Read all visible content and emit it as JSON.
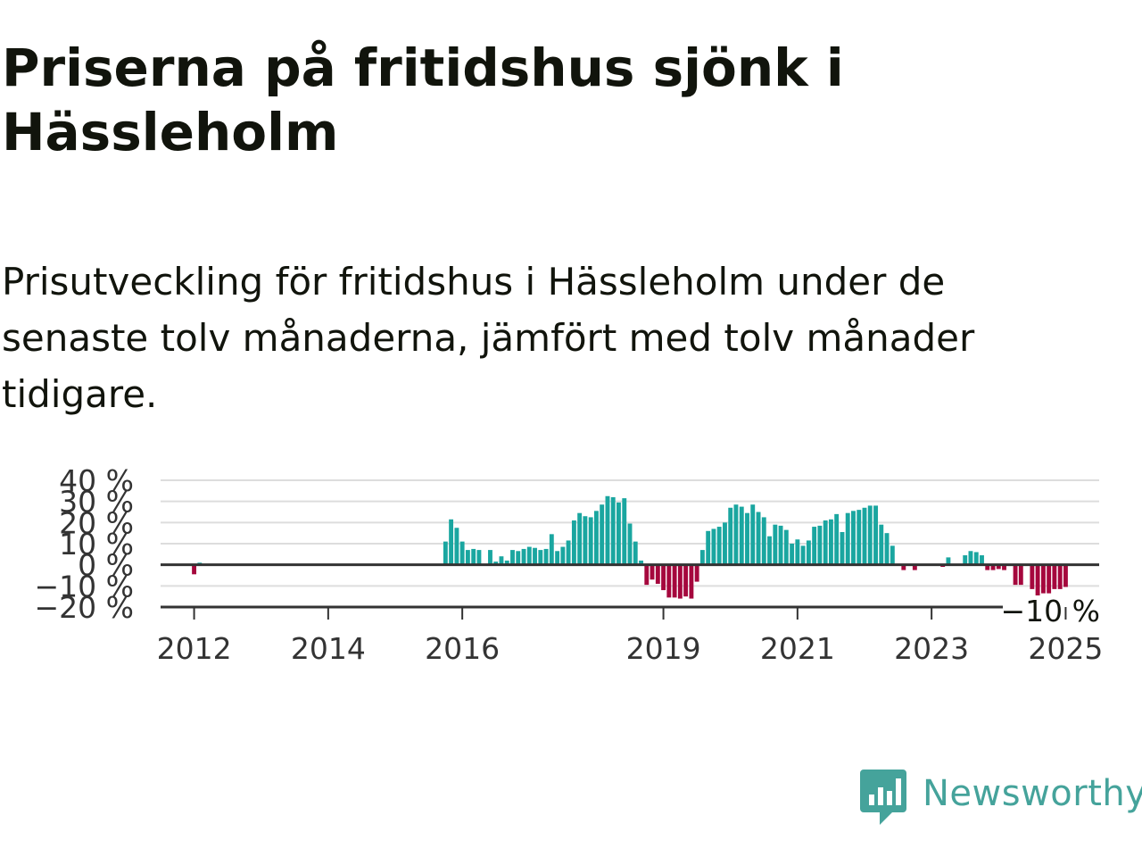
{
  "title": "Priserna på fritidshus sjönk i Hässleholm",
  "subtitle": "Prisutveckling för fritidshus i Hässleholm under de senaste tolv månaderna, jämfört med tolv månader tidigare.",
  "brand": {
    "name": "Newsworthy",
    "color": "#45a39b"
  },
  "colors": {
    "positive": "#1aa6a0",
    "negative": "#a5073d",
    "grid": "#dddddd",
    "zero_line": "#333333",
    "axis": "#333333"
  },
  "chart_data": {
    "type": "bar",
    "title": "",
    "xlabel": "",
    "ylabel": "",
    "ylim": [
      -20,
      40
    ],
    "yticks": [
      -20,
      -10,
      0,
      10,
      20,
      30,
      40
    ],
    "ytick_labels": [
      "−20 %",
      "−10 %",
      "0 %",
      "10 %",
      "20 %",
      "30 %",
      "40 %"
    ],
    "xticks": [
      2012,
      2014,
      2016,
      2019,
      2021,
      2023,
      2025
    ],
    "xtick_labels": [
      "2012",
      "2014",
      "2016",
      "2019",
      "2021",
      "2023",
      "2025"
    ],
    "x_start": 2011.5,
    "x_end": 2025.5,
    "grid": true,
    "series": [
      {
        "values": [
          {
            "x": 2012.0,
            "value": -4.5
          },
          {
            "x": 2012.083,
            "value": 1.0
          },
          {
            "x": 2015.75,
            "value": 11.0
          },
          {
            "x": 2015.833,
            "value": 21.5
          },
          {
            "x": 2015.917,
            "value": 17.5
          },
          {
            "x": 2016.0,
            "value": 11.0
          },
          {
            "x": 2016.083,
            "value": 7.0
          },
          {
            "x": 2016.167,
            "value": 7.5
          },
          {
            "x": 2016.25,
            "value": 7.0
          },
          {
            "x": 2016.417,
            "value": 7.0
          },
          {
            "x": 2016.5,
            "value": 1.5
          },
          {
            "x": 2016.583,
            "value": 4.0
          },
          {
            "x": 2016.667,
            "value": 2.0
          },
          {
            "x": 2016.75,
            "value": 7.0
          },
          {
            "x": 2016.833,
            "value": 6.5
          },
          {
            "x": 2016.917,
            "value": 7.5
          },
          {
            "x": 2017.0,
            "value": 8.5
          },
          {
            "x": 2017.083,
            "value": 8.0
          },
          {
            "x": 2017.167,
            "value": 7.0
          },
          {
            "x": 2017.25,
            "value": 7.5
          },
          {
            "x": 2017.333,
            "value": 14.5
          },
          {
            "x": 2017.417,
            "value": 6.5
          },
          {
            "x": 2017.5,
            "value": 8.5
          },
          {
            "x": 2017.583,
            "value": 11.5
          },
          {
            "x": 2017.667,
            "value": 21.0
          },
          {
            "x": 2017.75,
            "value": 24.5
          },
          {
            "x": 2017.833,
            "value": 23.0
          },
          {
            "x": 2017.917,
            "value": 22.5
          },
          {
            "x": 2018.0,
            "value": 25.5
          },
          {
            "x": 2018.083,
            "value": 28.5
          },
          {
            "x": 2018.167,
            "value": 32.5
          },
          {
            "x": 2018.25,
            "value": 32.0
          },
          {
            "x": 2018.333,
            "value": 29.5
          },
          {
            "x": 2018.417,
            "value": 31.5
          },
          {
            "x": 2018.5,
            "value": 19.5
          },
          {
            "x": 2018.583,
            "value": 11.0
          },
          {
            "x": 2018.667,
            "value": 2.0
          },
          {
            "x": 2018.75,
            "value": -9.5
          },
          {
            "x": 2018.833,
            "value": -7.0
          },
          {
            "x": 2018.917,
            "value": -9.0
          },
          {
            "x": 2019.0,
            "value": -12.0
          },
          {
            "x": 2019.083,
            "value": -15.5
          },
          {
            "x": 2019.167,
            "value": -15.5
          },
          {
            "x": 2019.25,
            "value": -16.0
          },
          {
            "x": 2019.333,
            "value": -15.0
          },
          {
            "x": 2019.417,
            "value": -16.0
          },
          {
            "x": 2019.5,
            "value": -8.0
          },
          {
            "x": 2019.583,
            "value": 7.0
          },
          {
            "x": 2019.667,
            "value": 16.0
          },
          {
            "x": 2019.75,
            "value": 17.0
          },
          {
            "x": 2019.833,
            "value": 18.0
          },
          {
            "x": 2019.917,
            "value": 20.0
          },
          {
            "x": 2020.0,
            "value": 27.0
          },
          {
            "x": 2020.083,
            "value": 28.5
          },
          {
            "x": 2020.167,
            "value": 27.5
          },
          {
            "x": 2020.25,
            "value": 24.5
          },
          {
            "x": 2020.333,
            "value": 28.5
          },
          {
            "x": 2020.417,
            "value": 25.0
          },
          {
            "x": 2020.5,
            "value": 22.5
          },
          {
            "x": 2020.583,
            "value": 13.5
          },
          {
            "x": 2020.667,
            "value": 19.0
          },
          {
            "x": 2020.75,
            "value": 18.5
          },
          {
            "x": 2020.833,
            "value": 16.5
          },
          {
            "x": 2020.917,
            "value": 10.0
          },
          {
            "x": 2021.0,
            "value": 12.0
          },
          {
            "x": 2021.083,
            "value": 9.0
          },
          {
            "x": 2021.167,
            "value": 11.5
          },
          {
            "x": 2021.25,
            "value": 18.0
          },
          {
            "x": 2021.333,
            "value": 18.5
          },
          {
            "x": 2021.417,
            "value": 21.0
          },
          {
            "x": 2021.5,
            "value": 21.5
          },
          {
            "x": 2021.583,
            "value": 24.0
          },
          {
            "x": 2021.667,
            "value": 15.5
          },
          {
            "x": 2021.75,
            "value": 24.5
          },
          {
            "x": 2021.833,
            "value": 25.5
          },
          {
            "x": 2021.917,
            "value": 26.0
          },
          {
            "x": 2022.0,
            "value": 27.0
          },
          {
            "x": 2022.083,
            "value": 28.0
          },
          {
            "x": 2022.167,
            "value": 28.0
          },
          {
            "x": 2022.25,
            "value": 19.0
          },
          {
            "x": 2022.333,
            "value": 15.0
          },
          {
            "x": 2022.417,
            "value": 9.0
          },
          {
            "x": 2022.583,
            "value": -2.5
          },
          {
            "x": 2022.75,
            "value": -2.5
          },
          {
            "x": 2023.167,
            "value": -1.0
          },
          {
            "x": 2023.25,
            "value": 3.5
          },
          {
            "x": 2023.5,
            "value": 4.5
          },
          {
            "x": 2023.583,
            "value": 6.5
          },
          {
            "x": 2023.667,
            "value": 6.0
          },
          {
            "x": 2023.75,
            "value": 4.5
          },
          {
            "x": 2023.833,
            "value": -2.5
          },
          {
            "x": 2023.917,
            "value": -2.5
          },
          {
            "x": 2024.0,
            "value": -2.0
          },
          {
            "x": 2024.083,
            "value": -2.5
          },
          {
            "x": 2024.25,
            "value": -9.5
          },
          {
            "x": 2024.333,
            "value": -9.5
          },
          {
            "x": 2024.5,
            "value": -11.5
          },
          {
            "x": 2024.583,
            "value": -14.5
          },
          {
            "x": 2024.667,
            "value": -13.5
          },
          {
            "x": 2024.75,
            "value": -13.5
          },
          {
            "x": 2024.833,
            "value": -11.5
          },
          {
            "x": 2024.917,
            "value": -11.5
          },
          {
            "x": 2025.0,
            "value": -10.5
          }
        ]
      }
    ],
    "annotation": {
      "label": "−10 %",
      "value": -10
    }
  }
}
